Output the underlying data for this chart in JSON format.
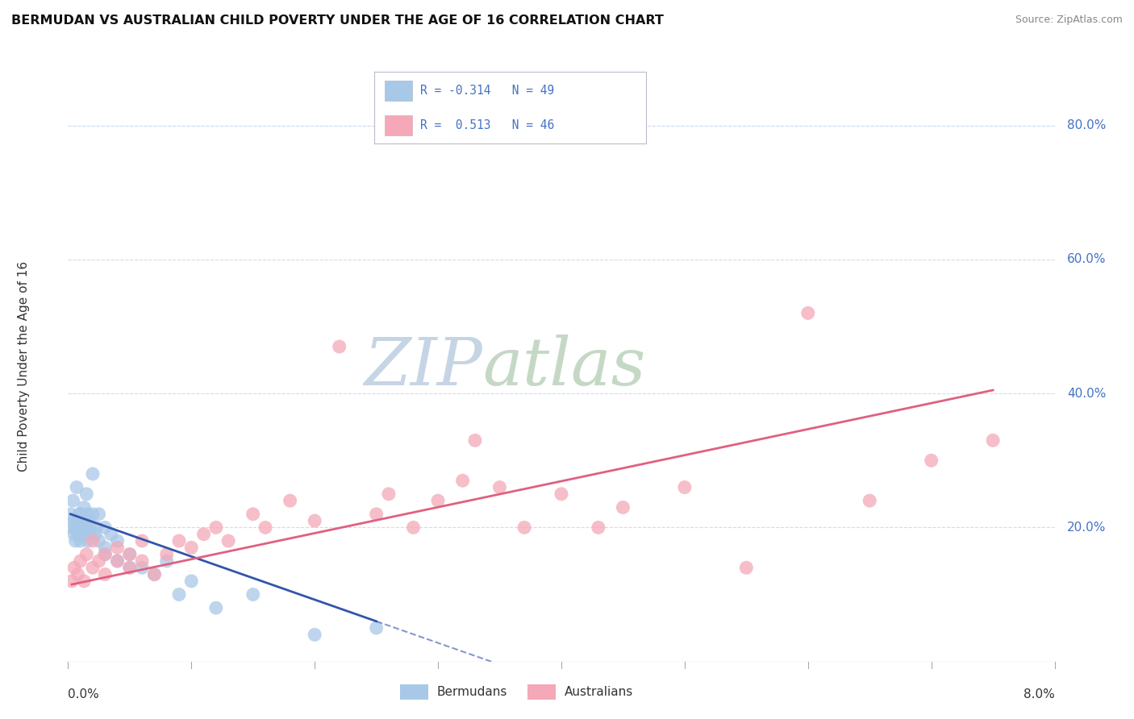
{
  "title": "BERMUDAN VS AUSTRALIAN CHILD POVERTY UNDER THE AGE OF 16 CORRELATION CHART",
  "source": "Source: ZipAtlas.com",
  "ylabel": "Child Poverty Under the Age of 16",
  "ytick_labels": [
    "20.0%",
    "40.0%",
    "60.0%",
    "80.0%"
  ],
  "ytick_values": [
    0.2,
    0.4,
    0.6,
    0.8
  ],
  "xtick_labels": [
    "0.0%",
    "8.0%"
  ],
  "legend_label1": "Bermudans",
  "legend_label2": "Australians",
  "blue_color": "#a8c8e8",
  "pink_color": "#f4a8b8",
  "blue_line_color": "#3355aa",
  "pink_line_color": "#e06080",
  "watermark_zip_color": "#c8d8e8",
  "watermark_atlas_color": "#d8e8d0",
  "background_color": "#ffffff",
  "grid_color": "#ccddee",
  "xmin": 0.0,
  "xmax": 0.08,
  "ymin": 0.0,
  "ymax": 0.88,
  "blue_scatter_x": [
    0.0002,
    0.0003,
    0.0004,
    0.0005,
    0.0005,
    0.0006,
    0.0006,
    0.0007,
    0.0008,
    0.0008,
    0.0009,
    0.001,
    0.001,
    0.001,
    0.0012,
    0.0012,
    0.0013,
    0.0013,
    0.0014,
    0.0015,
    0.0015,
    0.0016,
    0.0016,
    0.0017,
    0.0017,
    0.0018,
    0.002,
    0.002,
    0.0022,
    0.0023,
    0.0025,
    0.0025,
    0.003,
    0.003,
    0.003,
    0.0035,
    0.004,
    0.004,
    0.005,
    0.005,
    0.006,
    0.007,
    0.008,
    0.009,
    0.01,
    0.012,
    0.015,
    0.02,
    0.025
  ],
  "blue_scatter_y": [
    0.22,
    0.2,
    0.24,
    0.19,
    0.21,
    0.2,
    0.18,
    0.26,
    0.21,
    0.19,
    0.22,
    0.2,
    0.18,
    0.22,
    0.19,
    0.21,
    0.2,
    0.23,
    0.19,
    0.25,
    0.2,
    0.18,
    0.22,
    0.21,
    0.19,
    0.2,
    0.22,
    0.28,
    0.19,
    0.2,
    0.22,
    0.18,
    0.17,
    0.2,
    0.16,
    0.19,
    0.15,
    0.18,
    0.16,
    0.14,
    0.14,
    0.13,
    0.15,
    0.1,
    0.12,
    0.08,
    0.1,
    0.04,
    0.05
  ],
  "pink_scatter_x": [
    0.0003,
    0.0005,
    0.0008,
    0.001,
    0.0013,
    0.0015,
    0.002,
    0.002,
    0.0025,
    0.003,
    0.003,
    0.004,
    0.004,
    0.005,
    0.005,
    0.006,
    0.006,
    0.007,
    0.008,
    0.009,
    0.01,
    0.011,
    0.012,
    0.013,
    0.015,
    0.016,
    0.018,
    0.02,
    0.022,
    0.025,
    0.026,
    0.028,
    0.03,
    0.032,
    0.033,
    0.035,
    0.037,
    0.04,
    0.043,
    0.045,
    0.05,
    0.055,
    0.06,
    0.065,
    0.07,
    0.075
  ],
  "pink_scatter_y": [
    0.12,
    0.14,
    0.13,
    0.15,
    0.12,
    0.16,
    0.14,
    0.18,
    0.15,
    0.13,
    0.16,
    0.15,
    0.17,
    0.14,
    0.16,
    0.18,
    0.15,
    0.13,
    0.16,
    0.18,
    0.17,
    0.19,
    0.2,
    0.18,
    0.22,
    0.2,
    0.24,
    0.21,
    0.47,
    0.22,
    0.25,
    0.2,
    0.24,
    0.27,
    0.33,
    0.26,
    0.2,
    0.25,
    0.2,
    0.23,
    0.26,
    0.14,
    0.52,
    0.24,
    0.3,
    0.33
  ],
  "blue_line_x0": 0.0002,
  "blue_line_x1": 0.025,
  "blue_line_x_dash_end": 0.055,
  "blue_line_y0": 0.22,
  "blue_line_y1": 0.06,
  "pink_line_x0": 0.0003,
  "pink_line_x1": 0.075,
  "pink_line_y0": 0.115,
  "pink_line_y1": 0.405
}
